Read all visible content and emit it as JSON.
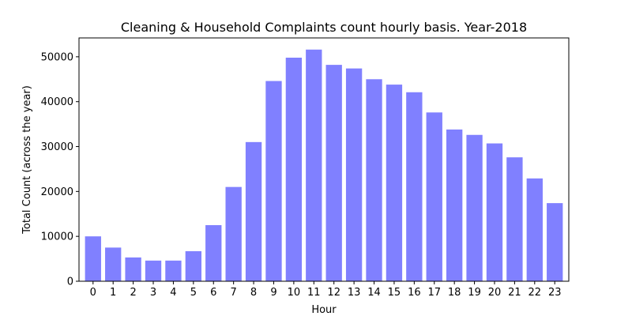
{
  "chart_data": {
    "type": "bar",
    "title": "Cleaning & Household Complaints count hourly basis. Year-2018",
    "xlabel": "Hour",
    "ylabel": "Total Count (across the year)",
    "categories": [
      "0",
      "1",
      "2",
      "3",
      "4",
      "5",
      "6",
      "7",
      "8",
      "9",
      "10",
      "11",
      "12",
      "13",
      "14",
      "15",
      "16",
      "17",
      "18",
      "19",
      "20",
      "21",
      "22",
      "23"
    ],
    "values": [
      10000,
      7500,
      5300,
      4600,
      4600,
      6700,
      12500,
      21000,
      31000,
      44600,
      49800,
      51600,
      48200,
      47400,
      45000,
      43800,
      42100,
      37600,
      33800,
      32600,
      30700,
      27600,
      22900,
      17400
    ],
    "ylim": [
      0,
      54200
    ],
    "yticks": [
      0,
      10000,
      20000,
      30000,
      40000,
      50000
    ],
    "ytick_labels": [
      "0",
      "10000",
      "20000",
      "30000",
      "40000",
      "50000"
    ],
    "bar_color": "#8080ff",
    "grid": false,
    "legend": "none"
  }
}
